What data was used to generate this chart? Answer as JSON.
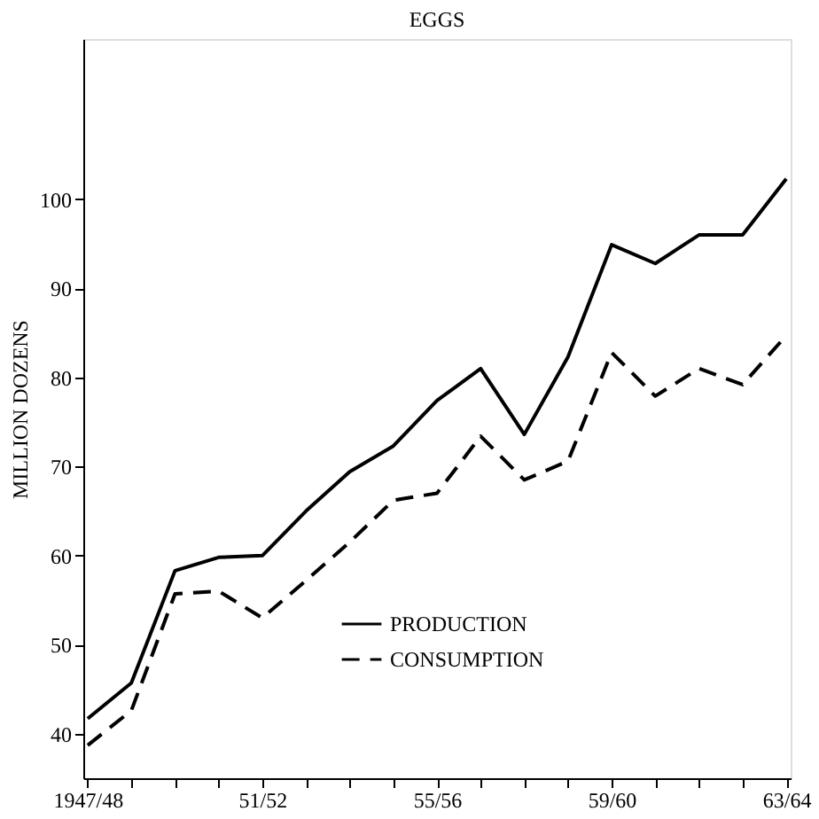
{
  "chart_data": {
    "type": "line",
    "title": "EGGS",
    "ylabel": "MILLION DOZENS",
    "categories": [
      "1947/48",
      null,
      null,
      null,
      "51/52",
      null,
      null,
      null,
      "55/56",
      null,
      null,
      null,
      "59/60",
      null,
      null,
      null,
      "63/64"
    ],
    "series": [
      {
        "name": "PRODUCTION",
        "color": "#000000",
        "line_style": "solid",
        "values": [
          41.7,
          45.7,
          58.3,
          59.8,
          60,
          65,
          69.4,
          72.3,
          77.4,
          81,
          73.6,
          82.3,
          94.9,
          92.8,
          96,
          96,
          102.3
        ]
      },
      {
        "name": "CONSUMPTION",
        "color": "#000000",
        "line_style": "dashed",
        "values": [
          38.7,
          42.6,
          55.7,
          56,
          53,
          57.2,
          61.5,
          66.2,
          67,
          73.4,
          68.5,
          70.6,
          82.8,
          77.9,
          81,
          79.2,
          84.7
        ]
      }
    ],
    "ylim": [
      35,
      118
    ],
    "yticks": [
      40,
      50,
      60,
      70,
      80,
      90,
      100
    ],
    "grid": false,
    "legend": "bottom",
    "marker": "none"
  }
}
